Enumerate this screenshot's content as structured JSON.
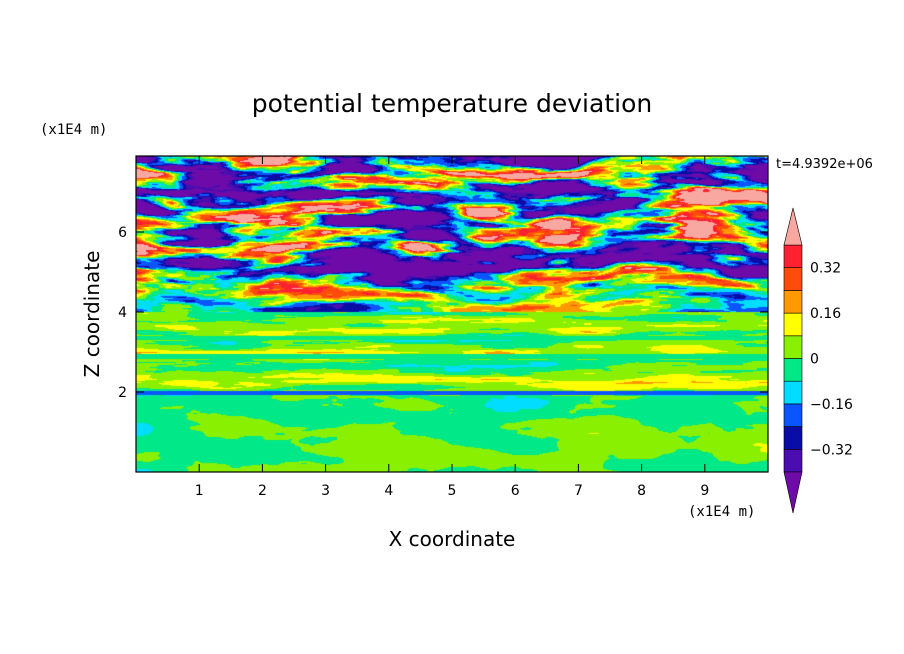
{
  "chart_data": {
    "type": "heatmap",
    "title": "potential temperature deviation",
    "xlabel": "X coordinate",
    "ylabel": "Z coordinate",
    "x_unit": "(x1E4 m)",
    "y_unit": "(x1E4 m)",
    "time_label": "t=4.9392e+06",
    "xlim": [
      0,
      10
    ],
    "ylim": [
      0,
      7.9
    ],
    "x_ticks": [
      1,
      2,
      3,
      4,
      5,
      6,
      7,
      8,
      9
    ],
    "y_ticks": [
      2,
      4,
      6
    ],
    "colorbar": {
      "levels": [
        -0.4,
        -0.32,
        -0.24,
        -0.16,
        -0.08,
        0,
        0.08,
        0.16,
        0.24,
        0.32,
        0.4
      ],
      "tick_values": [
        0.32,
        0.16,
        0,
        -0.16,
        -0.32
      ],
      "tick_labels": [
        "0.32",
        "0.16",
        "0",
        "−0.16",
        "−0.32"
      ],
      "colors": [
        "#4b0cb0",
        "#0a0ca6",
        "#0a55ff",
        "#00ddff",
        "#00e887",
        "#88f000",
        "#ffff00",
        "#ff9900",
        "#ff4c0c",
        "#ff2030"
      ],
      "under_color": "#6e0aa8",
      "over_color": "#f8a8a0",
      "extend": "both"
    },
    "regions": [
      {
        "z_range": [
          0,
          1.9
        ],
        "dominant": [
          "#00e887",
          "#88f000"
        ],
        "description_value_range": [
          -0.08,
          0.08
        ]
      },
      {
        "z_range": [
          1.9,
          4.0
        ],
        "dominant": [
          "#88f000",
          "#00e887"
        ],
        "description_value_range": [
          -0.08,
          0.08
        ]
      },
      {
        "z_range": [
          4.0,
          5.5
        ],
        "dominant": [
          "#6e0aa8",
          "#f8a8a0",
          "#ff2030",
          "#0a55ff"
        ],
        "description_value_range": [
          -0.4,
          0.4
        ]
      },
      {
        "z_range": [
          5.5,
          7.9
        ],
        "dominant": [
          "#f8a8a0",
          "#6e0aa8"
        ],
        "description_value_range": [
          -0.4,
          0.4
        ]
      }
    ]
  }
}
